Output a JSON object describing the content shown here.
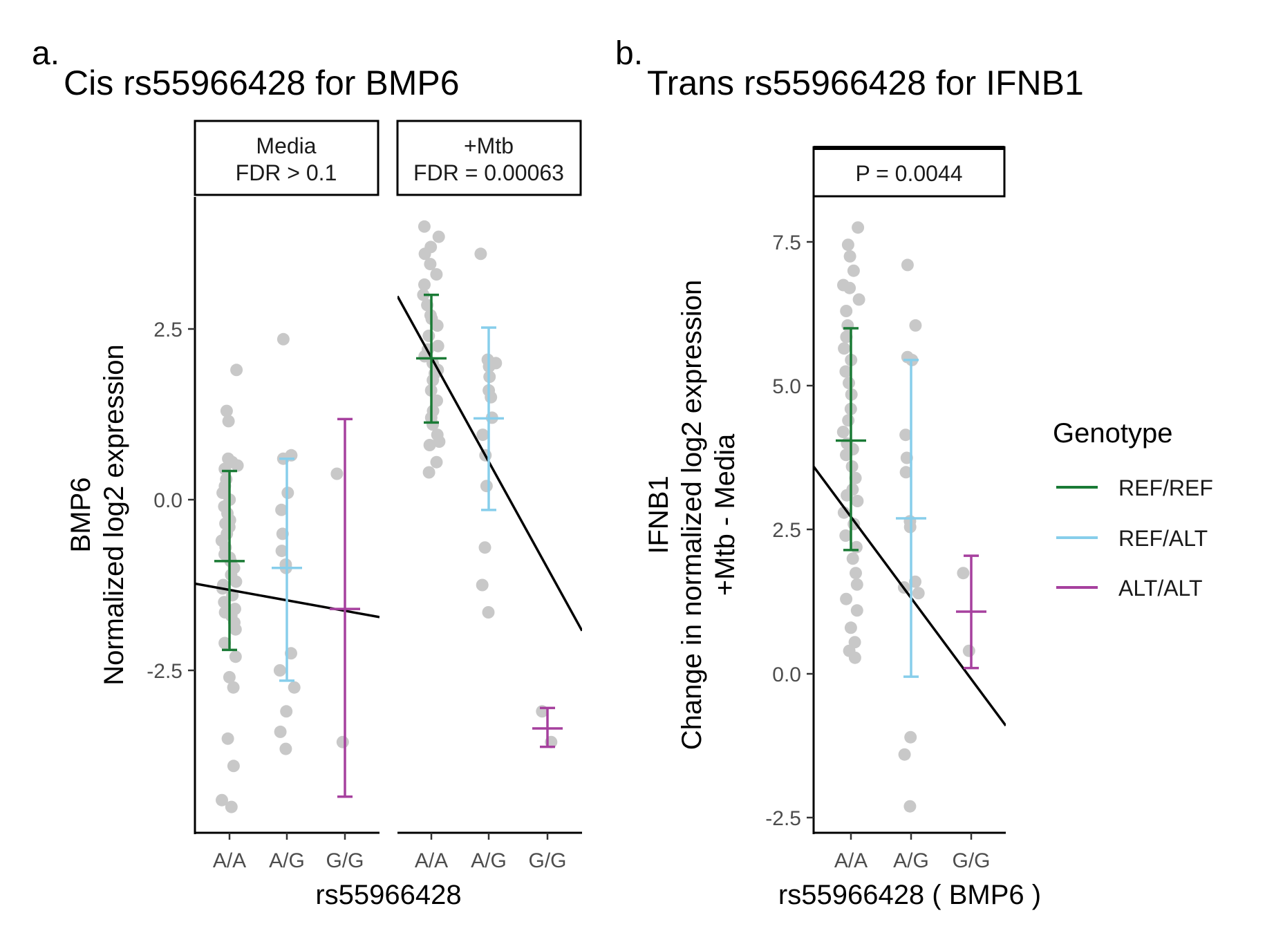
{
  "colors": {
    "REF/REF": "#1a7a35",
    "REF/ALT": "#87ceeb",
    "ALT/ALT": "#a6409e",
    "point": "#c8c8c8",
    "line": "#000000"
  },
  "legend": {
    "title": "Genotype",
    "items": [
      "REF/REF",
      "REF/ALT",
      "ALT/ALT"
    ]
  },
  "chart_data": [
    {
      "type": "scatter",
      "panel_letter": "a.",
      "title": "Cis rs55966428 for BMP6",
      "xlabel": "rs55966428",
      "ylabel": [
        "BMP6",
        "Normalized log2 expression"
      ],
      "ylim": [
        -4.9,
        4.5
      ],
      "yticks": [
        2.5,
        0.0,
        -2.5
      ],
      "ytick_labels": [
        "2.5",
        "0.0",
        "-2.5"
      ],
      "categories": [
        "A/A",
        "A/G",
        "G/G"
      ],
      "genotypes": [
        "REF/REF",
        "REF/ALT",
        "ALT/ALT"
      ],
      "facets": [
        {
          "strip": [
            "Media",
            "FDR > 0.1"
          ],
          "points": [
            [
              1.9,
              1.3,
              1.15,
              0.55,
              0.6,
              0.5,
              0.45,
              0.3,
              0.2,
              0.1,
              0.0,
              -0.1,
              -0.2,
              -0.3,
              -0.4,
              -0.5,
              -0.6,
              -0.7,
              -0.8,
              -0.9,
              -1.0,
              -1.1,
              -1.2,
              -1.3,
              -1.4,
              -1.5,
              -1.6,
              -1.7,
              -1.8,
              -1.9,
              -2.1,
              -2.3,
              -2.6,
              -2.75,
              -3.5,
              -3.9,
              -4.4,
              -4.5,
              -0.35,
              -0.85,
              -1.25,
              -1.65
            ],
            [
              2.35,
              0.65,
              0.6,
              0.1,
              -0.15,
              -0.5,
              -0.75,
              -0.95,
              -1.0,
              -2.25,
              -2.5,
              -2.75,
              -3.1,
              -3.4,
              -3.65
            ],
            [
              0.38,
              -3.55
            ]
          ],
          "means": [
            -0.9,
            -1.0,
            -1.6
          ],
          "error_low": [
            -2.2,
            -2.65,
            -4.35
          ],
          "error_high": [
            0.42,
            0.6,
            1.18
          ],
          "fit": [
            -1.23,
            -1.72
          ]
        },
        {
          "strip": [
            "+Mtb",
            "FDR = 0.00063"
          ],
          "points": [
            [
              4.0,
              3.85,
              3.7,
              3.6,
              3.45,
              3.3,
              3.15,
              3.0,
              2.85,
              2.7,
              2.55,
              2.4,
              2.25,
              2.1,
              2.0,
              1.9,
              1.75,
              1.6,
              1.45,
              1.3,
              1.2,
              1.1,
              0.95,
              0.85,
              0.8,
              0.55,
              0.4,
              2.65,
              2.2,
              1.85
            ],
            [
              3.6,
              2.05,
              2.0,
              1.95,
              1.8,
              1.6,
              1.5,
              1.2,
              0.95,
              0.65,
              0.2,
              -0.7,
              -1.25,
              -1.65
            ],
            [
              -3.1,
              -3.55
            ]
          ],
          "means": [
            2.07,
            1.19,
            -3.35
          ],
          "error_low": [
            1.13,
            -0.15,
            -3.62
          ],
          "error_high": [
            3.0,
            2.52,
            -3.05
          ],
          "fit": [
            2.98,
            -1.92
          ]
        }
      ]
    },
    {
      "type": "scatter",
      "panel_letter": "b.",
      "title": "Trans rs55966428 for IFNB1",
      "xlabel": "rs55966428 ( BMP6 )",
      "ylabel": [
        "IFNB1",
        "Change in normalized log2 expression",
        "+Mtb - Media"
      ],
      "ylim": [
        -2.8,
        8.3
      ],
      "yticks": [
        7.5,
        5.0,
        2.5,
        0.0,
        -2.5
      ],
      "ytick_labels": [
        "7.5",
        "5.0",
        "2.5",
        "0.0",
        "-2.5"
      ],
      "categories": [
        "A/A",
        "A/G",
        "G/G"
      ],
      "genotypes": [
        "REF/REF",
        "REF/ALT",
        "ALT/ALT"
      ],
      "facets": [
        {
          "strip": [
            "P = 0.0044"
          ],
          "points": [
            [
              7.75,
              7.45,
              7.25,
              7.0,
              6.7,
              6.5,
              6.3,
              6.05,
              5.85,
              5.65,
              5.45,
              5.25,
              5.05,
              4.85,
              4.6,
              4.4,
              4.2,
              4.0,
              3.8,
              3.6,
              3.4,
              3.2,
              3.0,
              2.8,
              2.6,
              2.4,
              2.2,
              2.0,
              1.75,
              1.55,
              1.3,
              1.1,
              0.8,
              0.55,
              0.4,
              0.28,
              6.75,
              3.9,
              3.1
            ],
            [
              7.1,
              6.05,
              5.5,
              5.45,
              4.15,
              3.75,
              3.5,
              2.65,
              2.55,
              1.6,
              1.5,
              1.4,
              -1.1,
              -1.4,
              -2.3
            ],
            [
              1.75,
              0.4
            ]
          ],
          "means": [
            4.05,
            2.7,
            1.08
          ],
          "error_low": [
            2.15,
            -0.05,
            0.1
          ],
          "error_high": [
            6.0,
            5.45,
            2.05
          ],
          "fit": [
            3.6,
            -0.9
          ]
        }
      ]
    }
  ]
}
